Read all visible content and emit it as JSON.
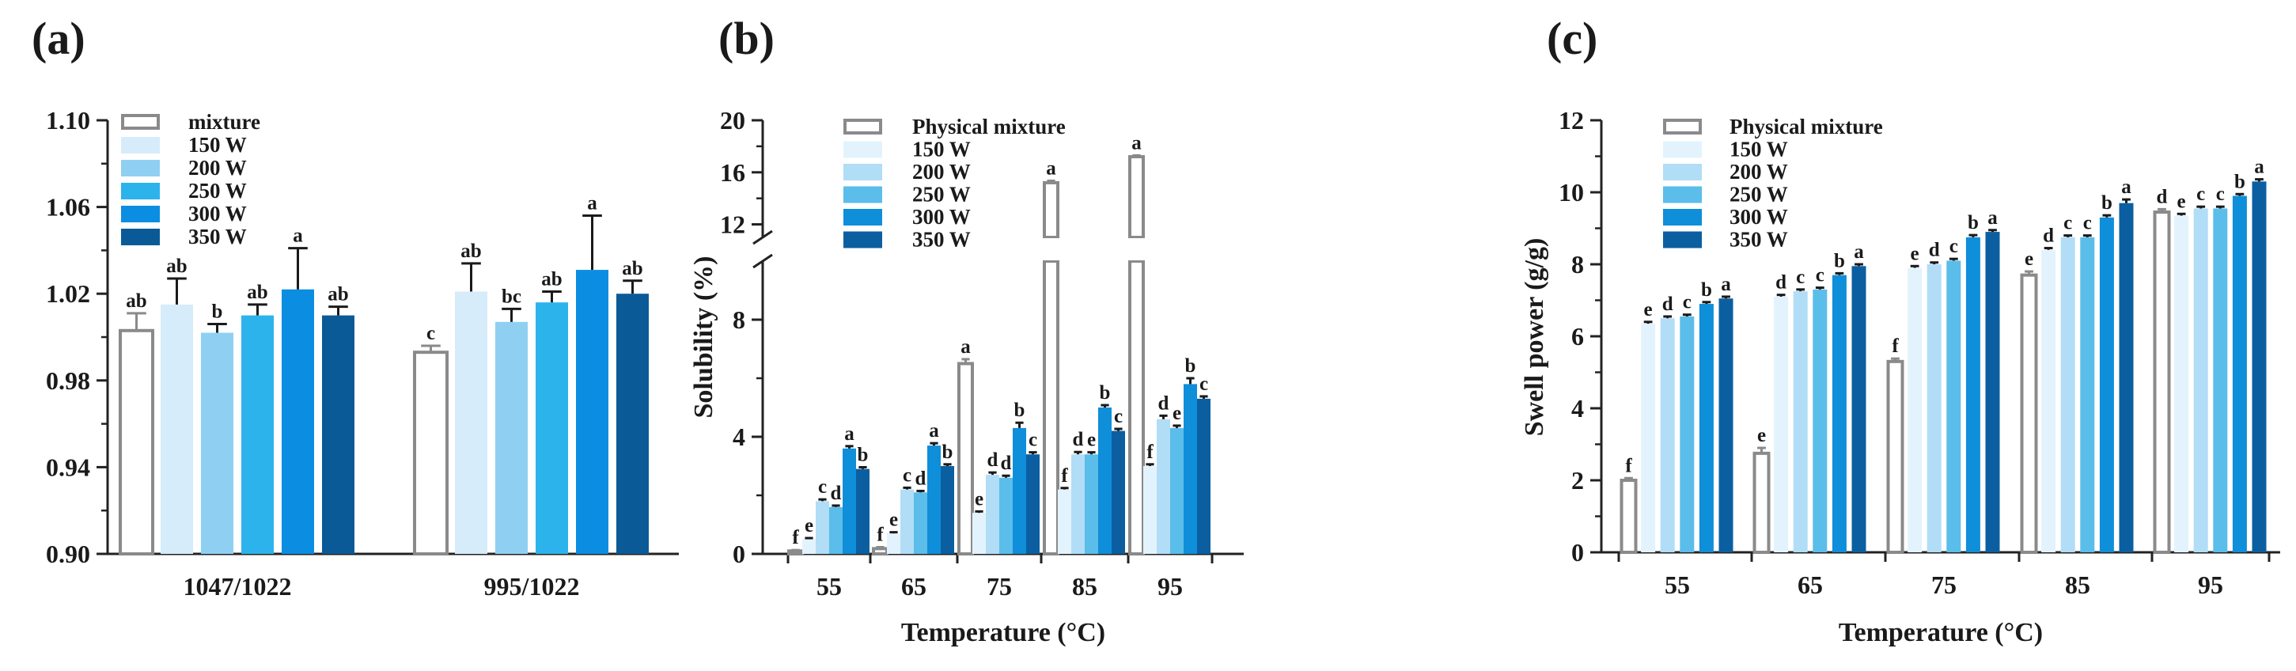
{
  "chart_data": [
    {
      "id": "a",
      "type": "bar",
      "panel_label": "(a)",
      "xlabel": "",
      "ylabel": "",
      "ylim": [
        0.9,
        1.1
      ],
      "yticks": [
        "0.90",
        "0.94",
        "0.98",
        "1.02",
        "1.06",
        "1.10"
      ],
      "ytick_values": [
        0.9,
        0.94,
        0.98,
        1.02,
        1.06,
        1.1
      ],
      "categories": [
        "1047/1022",
        "995/1022"
      ],
      "legend_position": "top-left",
      "series": [
        {
          "name": "mixture",
          "color": "#ffffff",
          "values": [
            1.003,
            0.993
          ],
          "errors": [
            0.008,
            0.003
          ],
          "labels": [
            "ab",
            "c"
          ]
        },
        {
          "name": "150 W",
          "color": "#d6ecfb",
          "values": [
            1.015,
            1.021
          ],
          "errors": [
            0.012,
            0.013
          ],
          "labels": [
            "ab",
            "ab"
          ]
        },
        {
          "name": "200 W",
          "color": "#8fd0f2",
          "values": [
            1.002,
            1.007
          ],
          "errors": [
            0.004,
            0.006
          ],
          "labels": [
            "b",
            "bc"
          ]
        },
        {
          "name": "250 W",
          "color": "#2db3ec",
          "values": [
            1.01,
            1.016
          ],
          "errors": [
            0.005,
            0.005
          ],
          "labels": [
            "ab",
            "ab"
          ]
        },
        {
          "name": "300 W",
          "color": "#0b8ee2",
          "values": [
            1.022,
            1.031
          ],
          "errors": [
            0.019,
            0.025
          ],
          "labels": [
            "a",
            "a"
          ]
        },
        {
          "name": "350 W",
          "color": "#0a5a97",
          "values": [
            1.01,
            1.02
          ],
          "errors": [
            0.004,
            0.006
          ],
          "labels": [
            "ab",
            "ab"
          ]
        }
      ]
    },
    {
      "id": "b",
      "type": "bar",
      "panel_label": "(b)",
      "xlabel": "Temperature (°C)",
      "ylabel": "Solubility (%)",
      "ylim": [
        0,
        20
      ],
      "axis_break": [
        10,
        11
      ],
      "yticks": [
        "0",
        "4",
        "8",
        "12",
        "16",
        "20"
      ],
      "ytick_values": [
        0,
        4,
        8,
        12,
        16,
        20
      ],
      "categories": [
        "55",
        "65",
        "75",
        "85",
        "95"
      ],
      "legend_position": "top-left",
      "series": [
        {
          "name": "Physical mixture",
          "color": "#ffffff",
          "values": [
            0.1,
            0.18,
            6.5,
            15.2,
            17.2
          ],
          "errors": [
            0.03,
            0.05,
            0.15,
            0.15,
            0.1
          ],
          "labels": [
            "f",
            "f",
            "a",
            "a",
            "a"
          ]
        },
        {
          "name": "150 W",
          "color": "#e3f3fd",
          "values": [
            0.5,
            0.7,
            1.4,
            2.2,
            3.0
          ],
          "errors": [
            0.04,
            0.04,
            0.05,
            0.05,
            0.06
          ],
          "labels": [
            "e",
            "e",
            "e",
            "f",
            "f"
          ]
        },
        {
          "name": "200 W",
          "color": "#b1ddf7",
          "values": [
            1.8,
            2.2,
            2.7,
            3.4,
            4.6
          ],
          "errors": [
            0.06,
            0.06,
            0.08,
            0.08,
            0.12
          ],
          "labels": [
            "c",
            "c",
            "d",
            "d",
            "d"
          ]
        },
        {
          "name": "250 W",
          "color": "#5bbde9",
          "values": [
            1.6,
            2.1,
            2.6,
            3.4,
            4.3
          ],
          "errors": [
            0.05,
            0.05,
            0.07,
            0.07,
            0.08
          ],
          "labels": [
            "d",
            "d",
            "d",
            "e",
            "e"
          ]
        },
        {
          "name": "300 W",
          "color": "#0f8ed9",
          "values": [
            3.6,
            3.7,
            4.3,
            5.0,
            5.8
          ],
          "errors": [
            0.08,
            0.08,
            0.18,
            0.08,
            0.2
          ],
          "labels": [
            "a",
            "a",
            "b",
            "b",
            "b"
          ]
        },
        {
          "name": "350 W",
          "color": "#0b5fa1",
          "values": [
            2.9,
            3.0,
            3.4,
            4.2,
            5.3
          ],
          "errors": [
            0.06,
            0.06,
            0.07,
            0.07,
            0.08
          ],
          "labels": [
            "b",
            "b",
            "c",
            "c",
            "c"
          ]
        }
      ]
    },
    {
      "id": "c",
      "type": "bar",
      "panel_label": "(c)",
      "xlabel": "Temperature (°C)",
      "ylabel": "Swell power (g/g)",
      "ylim": [
        0,
        12
      ],
      "yticks": [
        "0",
        "2",
        "4",
        "6",
        "8",
        "10",
        "12"
      ],
      "ytick_values": [
        0,
        2,
        4,
        6,
        8,
        10,
        12
      ],
      "categories": [
        "55",
        "65",
        "75",
        "85",
        "95"
      ],
      "legend_position": "top-left",
      "series": [
        {
          "name": "Physical mixture",
          "color": "#ffffff",
          "values": [
            2.0,
            2.75,
            5.3,
            7.7,
            9.45
          ],
          "errors": [
            0.06,
            0.15,
            0.08,
            0.1,
            0.08
          ],
          "labels": [
            "f",
            "e",
            "f",
            "e",
            "d"
          ]
        },
        {
          "name": "150 W",
          "color": "#e3f3fd",
          "values": [
            6.35,
            7.1,
            7.9,
            8.4,
            9.35
          ],
          "errors": [
            0.05,
            0.05,
            0.05,
            0.05,
            0.05
          ],
          "labels": [
            "e",
            "d",
            "e",
            "d",
            "e"
          ]
        },
        {
          "name": "200 W",
          "color": "#b1ddf7",
          "values": [
            6.5,
            7.25,
            8.0,
            8.75,
            9.55
          ],
          "errors": [
            0.05,
            0.05,
            0.05,
            0.05,
            0.05
          ],
          "labels": [
            "d",
            "c",
            "d",
            "c",
            "c"
          ]
        },
        {
          "name": "250 W",
          "color": "#5bbde9",
          "values": [
            6.55,
            7.3,
            8.1,
            8.75,
            9.55
          ],
          "errors": [
            0.05,
            0.05,
            0.05,
            0.05,
            0.05
          ],
          "labels": [
            "c",
            "c",
            "c",
            "c",
            "c"
          ]
        },
        {
          "name": "300 W",
          "color": "#0f8ed9",
          "values": [
            6.9,
            7.7,
            8.75,
            9.3,
            9.9
          ],
          "errors": [
            0.05,
            0.05,
            0.06,
            0.06,
            0.05
          ],
          "labels": [
            "b",
            "b",
            "b",
            "b",
            "b"
          ]
        },
        {
          "name": "350 W",
          "color": "#0b5fa1",
          "values": [
            7.05,
            7.95,
            8.9,
            9.7,
            10.3
          ],
          "errors": [
            0.05,
            0.05,
            0.05,
            0.1,
            0.06
          ],
          "labels": [
            "a",
            "a",
            "a",
            "a",
            "a"
          ]
        }
      ]
    }
  ]
}
